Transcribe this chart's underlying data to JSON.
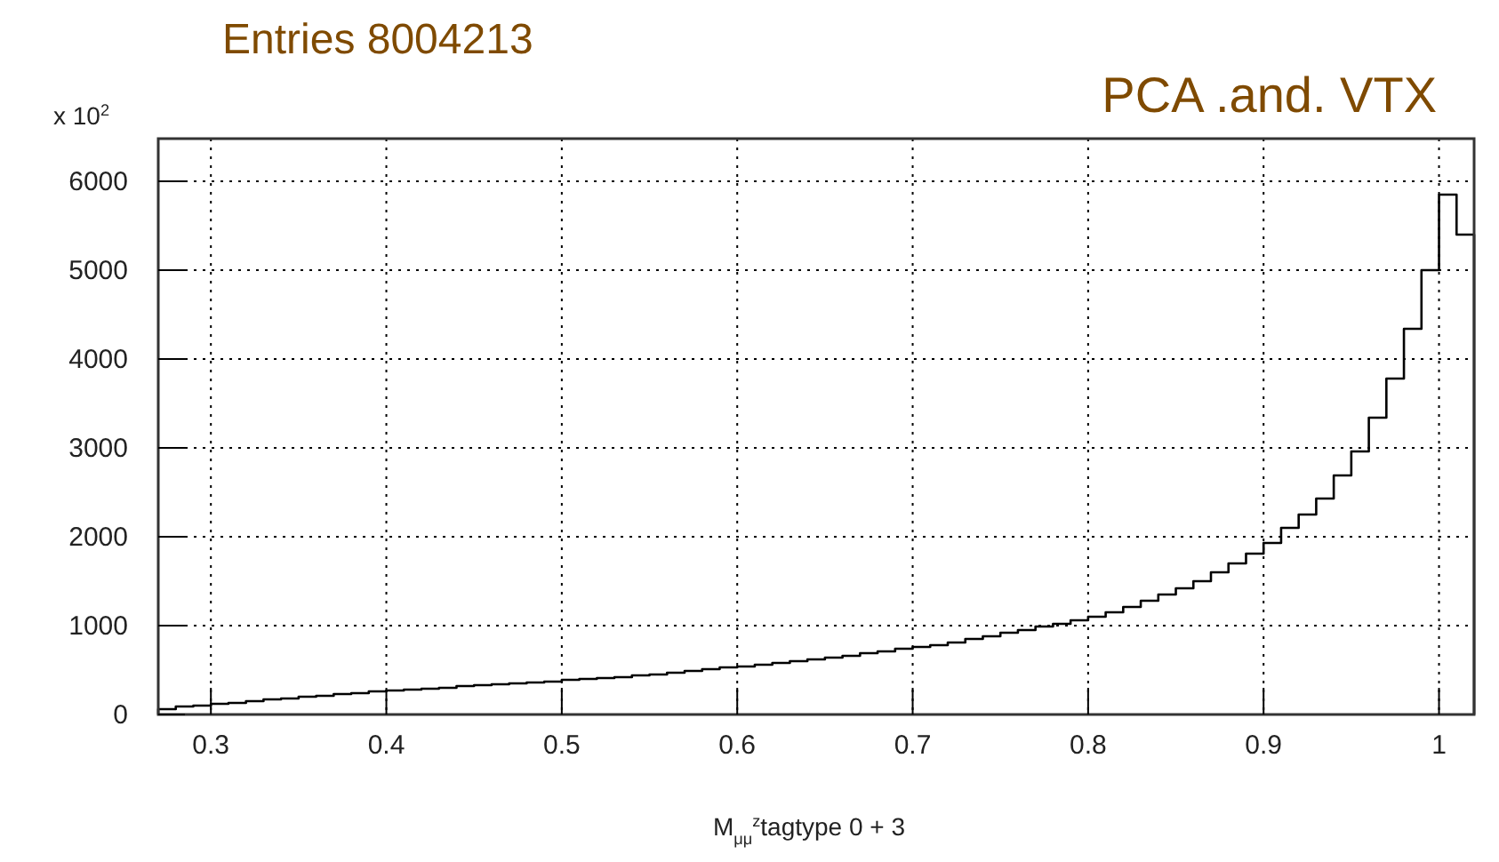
{
  "chart_data": {
    "type": "histogram",
    "title": "PCA .and. VTX",
    "annotations": [
      "Entries 8004213"
    ],
    "xlabel": "M$_{μμ}$$^{z}$tagtype 0 + 3",
    "ylabel": "x 10$^{2}$",
    "bins": [
      0.27,
      0.28,
      0.29,
      0.3,
      0.31,
      0.32,
      0.33,
      0.34,
      0.35,
      0.36,
      0.37,
      0.38,
      0.39,
      0.4,
      0.41,
      0.42,
      0.43,
      0.44,
      0.45,
      0.46,
      0.47,
      0.48,
      0.49,
      0.5,
      0.51,
      0.52,
      0.53,
      0.54,
      0.55,
      0.56,
      0.57,
      0.58,
      0.59,
      0.6,
      0.61,
      0.62,
      0.63,
      0.64,
      0.65,
      0.66,
      0.67,
      0.68,
      0.69,
      0.7,
      0.71,
      0.72,
      0.73,
      0.74,
      0.75,
      0.76,
      0.77,
      0.78,
      0.79,
      0.8,
      0.81,
      0.82,
      0.83,
      0.84,
      0.85,
      0.86,
      0.87,
      0.88,
      0.89,
      0.9,
      0.91,
      0.92,
      0.93,
      0.94,
      0.95,
      0.96,
      0.97,
      0.98,
      0.99,
      1.0,
      1.01,
      1.02
    ],
    "values": [
      60,
      90,
      100,
      120,
      130,
      150,
      170,
      180,
      200,
      210,
      230,
      240,
      260,
      270,
      280,
      290,
      300,
      320,
      330,
      340,
      350,
      360,
      370,
      390,
      400,
      410,
      420,
      440,
      450,
      470,
      490,
      510,
      530,
      540,
      560,
      580,
      600,
      620,
      640,
      660,
      690,
      710,
      740,
      760,
      780,
      810,
      850,
      880,
      920,
      950,
      990,
      1020,
      1060,
      1100,
      1150,
      1210,
      1280,
      1350,
      1420,
      1500,
      1600,
      1700,
      1810,
      1930,
      2100,
      2250,
      2430,
      2690,
      2960,
      3340,
      3780,
      4340,
      5000,
      5850,
      5400
    ],
    "color": "#000000",
    "xlim": [
      0.27,
      1.02
    ],
    "ylim": [
      0,
      6480
    ],
    "xticks": [
      {
        "value": 0.3,
        "label": "0.3"
      },
      {
        "value": 0.4,
        "label": "0.4"
      },
      {
        "value": 0.5,
        "label": "0.5"
      },
      {
        "value": 0.6,
        "label": "0.6"
      },
      {
        "value": 0.7,
        "label": "0.7"
      },
      {
        "value": 0.8,
        "label": "0.8"
      },
      {
        "value": 0.9,
        "label": "0.9"
      },
      1
    ],
    "yticks": [
      0,
      1000,
      2000,
      3000,
      4000,
      5000,
      6000
    ],
    "grid": true
  }
}
